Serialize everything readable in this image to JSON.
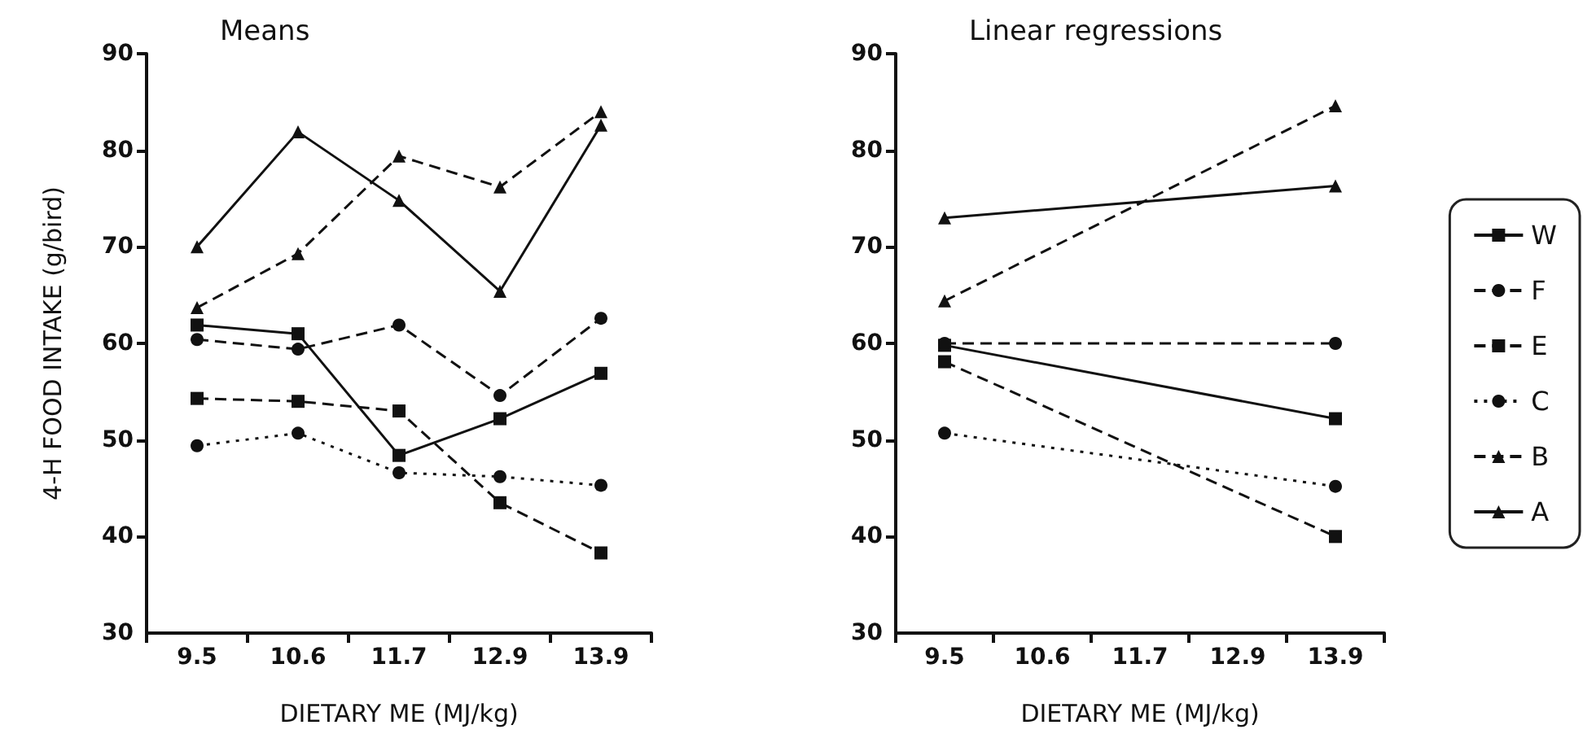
{
  "chart_data": [
    {
      "type": "line",
      "title": "Means",
      "xlabel": "DIETARY ME (MJ/kg)",
      "ylabel": "4-H FOOD INTAKE (g/bird)",
      "categories": [
        "9.5",
        "10.6",
        "11.7",
        "12.9",
        "13.9"
      ],
      "ylim": [
        30,
        90
      ],
      "yticks": [
        30,
        40,
        50,
        60,
        70,
        80,
        90
      ],
      "grid": false,
      "legend": false,
      "series": [
        {
          "color": "#111111",
          "marker": "square",
          "line_style": "solid",
          "values": [
            61.9,
            61.0,
            48.4,
            52.2,
            56.9
          ]
        },
        {
          "color": "#111111",
          "marker": "circle",
          "line_style": "dashed",
          "values": [
            60.4,
            59.4,
            61.9,
            54.6,
            62.6
          ]
        },
        {
          "color": "#111111",
          "marker": "square",
          "line_style": "dashed",
          "values": [
            54.3,
            54.0,
            53.0,
            43.5,
            38.3
          ]
        },
        {
          "color": "#111111",
          "marker": "circle",
          "line_style": "dotted",
          "values": [
            49.4,
            50.7,
            46.6,
            46.2,
            45.3
          ]
        },
        {
          "color": "#111111",
          "marker": "triangle",
          "line_style": "dashed",
          "values": [
            63.7,
            69.3,
            79.4,
            76.2,
            84.0
          ]
        },
        {
          "color": "#111111",
          "marker": "triangle",
          "line_style": "solid",
          "values": [
            70.0,
            81.9,
            74.8,
            65.4,
            82.6
          ]
        }
      ]
    },
    {
      "type": "line",
      "title": "Linear regressions",
      "xlabel": "DIETARY ME (MJ/kg)",
      "categories": [
        "9.5",
        "10.6",
        "11.7",
        "12.9",
        "13.9"
      ],
      "ylim": [
        30,
        90
      ],
      "yticks": [
        30,
        40,
        50,
        60,
        70,
        80,
        90
      ],
      "grid": false,
      "legend": "right",
      "series": [
        {
          "name": "W",
          "color": "#111111",
          "marker": "square",
          "line_style": "solid",
          "values": [
            59.8,
            null,
            null,
            null,
            52.2
          ]
        },
        {
          "name": "F",
          "color": "#111111",
          "marker": "circle",
          "line_style": "dashed",
          "values": [
            60.0,
            null,
            null,
            null,
            60.0
          ]
        },
        {
          "name": "E",
          "color": "#111111",
          "marker": "square",
          "line_style": "dashed",
          "values": [
            58.1,
            null,
            null,
            null,
            40.0
          ]
        },
        {
          "name": "C",
          "color": "#111111",
          "marker": "circle",
          "line_style": "dotted",
          "values": [
            50.7,
            null,
            null,
            null,
            45.2
          ]
        },
        {
          "name": "B",
          "color": "#111111",
          "marker": "triangle",
          "line_style": "dashed",
          "values": [
            64.4,
            null,
            null,
            null,
            84.6
          ]
        },
        {
          "name": "A",
          "color": "#111111",
          "marker": "triangle",
          "line_style": "solid",
          "values": [
            73.0,
            null,
            null,
            null,
            76.3
          ]
        }
      ]
    }
  ]
}
